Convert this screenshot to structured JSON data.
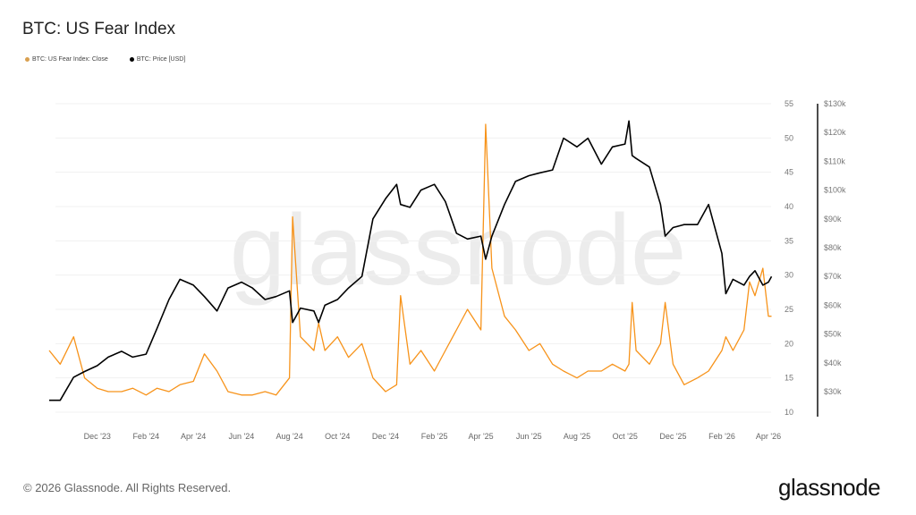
{
  "chart_data": {
    "type": "line",
    "title": "BTC: US Fear Index",
    "watermark": "glassnode",
    "legend_position": "top-left",
    "grid": true,
    "x_tick_labels": [
      "Dec '23",
      "Feb '24",
      "Apr '24",
      "Jun '24",
      "Aug '24",
      "Oct '24",
      "Dec '24",
      "Feb '25",
      "Apr '25",
      "Jun '25",
      "Aug '25",
      "Oct '25",
      "Dec '25",
      "Feb '26",
      "Apr '26"
    ],
    "x_tick_dates": [
      "2023-12-01",
      "2024-02-01",
      "2024-04-01",
      "2024-06-01",
      "2024-08-01",
      "2024-10-01",
      "2024-12-01",
      "2025-02-01",
      "2025-04-01",
      "2025-06-01",
      "2025-08-01",
      "2025-10-01",
      "2025-12-01",
      "2026-02-01",
      "2026-04-01"
    ],
    "xlim": [
      "2023-10-01",
      "2026-04-08"
    ],
    "y_left": {
      "ticks": [
        "55",
        "50",
        "45",
        "40",
        "35",
        "30",
        "25",
        "20",
        "15",
        "10"
      ],
      "ylim": [
        10,
        55
      ]
    },
    "y_right": {
      "ticks": [
        "$130k",
        "$120k",
        "$110k",
        "$100k",
        "$90k",
        "$80k",
        "$70k",
        "$60k",
        "$50k",
        "$40k",
        "$30k"
      ],
      "ylim_k": [
        20,
        130
      ]
    },
    "x": [
      "2023-10-01",
      "2023-10-15",
      "2023-11-01",
      "2023-11-15",
      "2023-12-01",
      "2023-12-15",
      "2024-01-01",
      "2024-01-15",
      "2024-02-01",
      "2024-02-15",
      "2024-03-01",
      "2024-03-15",
      "2024-04-01",
      "2024-04-15",
      "2024-05-01",
      "2024-05-15",
      "2024-06-01",
      "2024-06-15",
      "2024-07-01",
      "2024-07-15",
      "2024-08-01",
      "2024-08-05",
      "2024-08-15",
      "2024-09-01",
      "2024-09-07",
      "2024-09-15",
      "2024-10-01",
      "2024-10-15",
      "2024-11-01",
      "2024-11-15",
      "2024-12-01",
      "2024-12-15",
      "2024-12-20",
      "2025-01-01",
      "2025-01-15",
      "2025-02-01",
      "2025-02-15",
      "2025-03-01",
      "2025-03-15",
      "2025-04-01",
      "2025-04-07",
      "2025-04-15",
      "2025-05-01",
      "2025-05-15",
      "2025-06-01",
      "2025-06-15",
      "2025-07-01",
      "2025-07-15",
      "2025-08-01",
      "2025-08-15",
      "2025-09-01",
      "2025-09-15",
      "2025-10-01",
      "2025-10-06",
      "2025-10-10",
      "2025-10-15",
      "2025-11-01",
      "2025-11-15",
      "2025-11-21",
      "2025-12-01",
      "2025-12-15",
      "2026-01-01",
      "2026-01-15",
      "2026-02-01",
      "2026-02-06",
      "2026-02-15",
      "2026-03-01",
      "2026-03-08",
      "2026-03-15",
      "2026-03-25",
      "2026-04-01",
      "2026-04-05"
    ],
    "series": [
      {
        "name": "BTC: US Fear Index: Close",
        "axis": "left",
        "color": "#f7931a",
        "values": [
          19,
          17,
          21,
          15,
          13.5,
          13,
          13,
          13.5,
          12.5,
          13.5,
          13,
          14,
          14.5,
          18.5,
          16,
          13,
          12.5,
          12.5,
          13,
          12.5,
          15,
          38.5,
          21,
          19,
          23,
          19,
          21,
          18,
          20,
          15,
          13,
          14,
          27,
          17,
          19,
          16,
          19,
          22,
          25,
          22,
          52,
          31,
          24,
          22,
          19,
          20,
          17,
          16,
          15,
          16,
          16,
          17,
          16,
          17,
          26,
          19,
          17,
          20,
          26,
          17,
          14,
          15,
          16,
          19,
          21,
          19,
          22,
          29,
          27,
          31,
          24,
          24
        ]
      },
      {
        "name": "BTC: Price [USD]",
        "axis": "right",
        "color": "#000000",
        "unit": "USD thousands",
        "values": [
          27,
          27,
          35,
          37,
          39,
          42,
          44,
          42,
          43,
          52,
          62,
          69,
          67,
          63,
          58,
          66,
          68,
          66,
          62,
          63,
          65,
          54,
          59,
          58,
          54,
          60,
          62,
          66,
          70,
          90,
          97,
          102,
          95,
          94,
          100,
          102,
          96,
          85,
          83,
          84,
          76,
          84,
          95,
          103,
          105,
          106,
          107,
          118,
          115,
          118,
          109,
          115,
          116,
          124,
          112,
          111,
          108,
          95,
          84,
          87,
          88,
          88,
          95,
          78,
          64,
          69,
          67,
          70,
          72,
          67,
          68,
          70
        ]
      }
    ]
  },
  "footer": {
    "copyright": "© 2026 Glassnode. All Rights Reserved.",
    "logo": "glassnode"
  }
}
